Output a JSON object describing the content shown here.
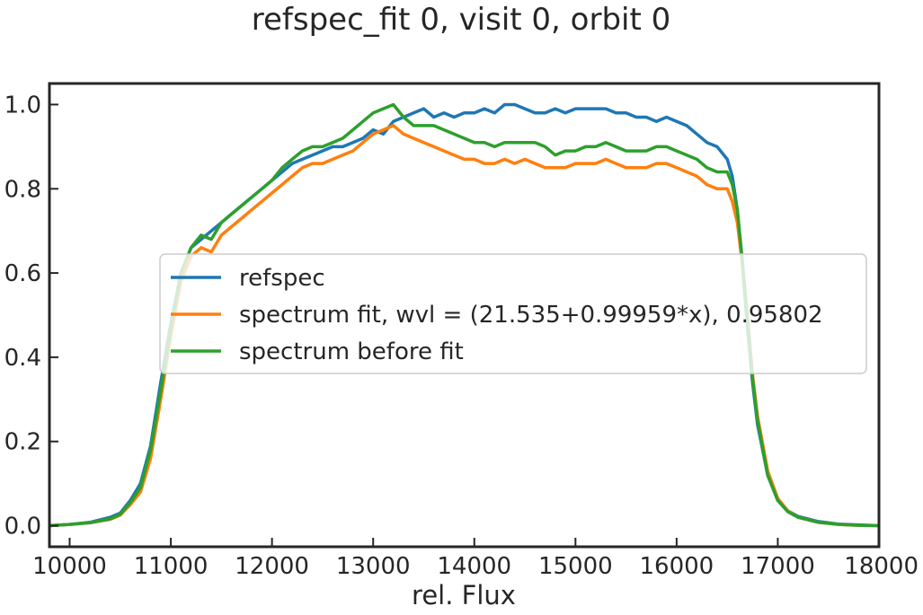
{
  "chart_data": {
    "type": "line",
    "title": "refspec_fit 0, visit 0, orbit 0",
    "xlabel": "rel. Flux",
    "ylabel": "",
    "xlim": [
      9800,
      18000
    ],
    "ylim": [
      -0.05,
      1.05
    ],
    "xticks": [
      "10000",
      "11000",
      "12000",
      "13000",
      "14000",
      "15000",
      "16000",
      "17000",
      "18000"
    ],
    "yticks": [
      "0.0",
      "0.2",
      "0.4",
      "0.6",
      "0.8",
      "1.0"
    ],
    "grid": false,
    "legend_position": "center",
    "series": [
      {
        "name": "refspec",
        "color": "#1f77b4",
        "x": [
          9800,
          10000,
          10200,
          10400,
          10500,
          10600,
          10700,
          10800,
          10900,
          11000,
          11100,
          11200,
          11300,
          11400,
          11500,
          11600,
          11700,
          11800,
          11900,
          12000,
          12100,
          12200,
          12300,
          12400,
          12500,
          12600,
          12700,
          12800,
          12900,
          13000,
          13100,
          13200,
          13300,
          13400,
          13500,
          13600,
          13700,
          13800,
          13900,
          14000,
          14100,
          14200,
          14300,
          14400,
          14500,
          14600,
          14700,
          14800,
          14900,
          15000,
          15100,
          15200,
          15300,
          15400,
          15500,
          15600,
          15700,
          15800,
          15900,
          16000,
          16100,
          16200,
          16300,
          16400,
          16500,
          16550,
          16600,
          16650,
          16700,
          16750,
          16800,
          16900,
          17000,
          17100,
          17200,
          17400,
          17600,
          17800,
          18000
        ],
        "y": [
          0.0,
          0.003,
          0.008,
          0.02,
          0.03,
          0.06,
          0.1,
          0.19,
          0.34,
          0.48,
          0.6,
          0.66,
          0.68,
          0.7,
          0.72,
          0.74,
          0.76,
          0.78,
          0.8,
          0.82,
          0.84,
          0.86,
          0.87,
          0.88,
          0.89,
          0.9,
          0.9,
          0.91,
          0.92,
          0.94,
          0.93,
          0.96,
          0.97,
          0.98,
          0.99,
          0.97,
          0.98,
          0.97,
          0.98,
          0.98,
          0.99,
          0.98,
          1.0,
          1.0,
          0.99,
          0.98,
          0.98,
          0.99,
          0.98,
          0.99,
          0.99,
          0.99,
          0.99,
          0.98,
          0.98,
          0.97,
          0.97,
          0.96,
          0.97,
          0.96,
          0.95,
          0.93,
          0.91,
          0.9,
          0.87,
          0.83,
          0.75,
          0.62,
          0.47,
          0.34,
          0.24,
          0.12,
          0.06,
          0.035,
          0.022,
          0.01,
          0.004,
          0.002,
          0.0
        ]
      },
      {
        "name": "spectrum fit, wvl = (21.535+0.99959*x), 0.95802",
        "color": "#ff7f0e",
        "x": [
          9800,
          10000,
          10200,
          10400,
          10500,
          10600,
          10700,
          10800,
          10900,
          11000,
          11100,
          11200,
          11300,
          11400,
          11500,
          11600,
          11700,
          11800,
          11900,
          12000,
          12100,
          12200,
          12300,
          12400,
          12500,
          12600,
          12700,
          12800,
          12900,
          13000,
          13100,
          13200,
          13300,
          13400,
          13500,
          13600,
          13700,
          13800,
          13900,
          14000,
          14100,
          14200,
          14300,
          14400,
          14500,
          14600,
          14700,
          14800,
          14900,
          15000,
          15100,
          15200,
          15300,
          15400,
          15500,
          15600,
          15700,
          15800,
          15900,
          16000,
          16100,
          16200,
          16300,
          16400,
          16500,
          16550,
          16600,
          16650,
          16700,
          16750,
          16800,
          16900,
          17000,
          17100,
          17200,
          17400,
          17600,
          17800,
          18000
        ],
        "y": [
          0.0,
          0.003,
          0.007,
          0.015,
          0.025,
          0.05,
          0.08,
          0.16,
          0.3,
          0.45,
          0.58,
          0.64,
          0.66,
          0.65,
          0.69,
          0.71,
          0.73,
          0.75,
          0.77,
          0.79,
          0.81,
          0.83,
          0.85,
          0.86,
          0.86,
          0.87,
          0.88,
          0.89,
          0.91,
          0.93,
          0.94,
          0.95,
          0.93,
          0.92,
          0.91,
          0.9,
          0.89,
          0.88,
          0.87,
          0.87,
          0.86,
          0.86,
          0.87,
          0.86,
          0.87,
          0.86,
          0.85,
          0.85,
          0.85,
          0.86,
          0.86,
          0.86,
          0.87,
          0.86,
          0.85,
          0.85,
          0.85,
          0.86,
          0.86,
          0.85,
          0.84,
          0.83,
          0.81,
          0.8,
          0.8,
          0.77,
          0.72,
          0.62,
          0.5,
          0.36,
          0.26,
          0.13,
          0.065,
          0.035,
          0.02,
          0.008,
          0.003,
          0.001,
          0.0
        ]
      },
      {
        "name": "spectrum before fit",
        "color": "#2ca02c",
        "x": [
          9800,
          10000,
          10200,
          10400,
          10500,
          10600,
          10700,
          10800,
          10900,
          11000,
          11100,
          11200,
          11300,
          11400,
          11500,
          11600,
          11700,
          11800,
          11900,
          12000,
          12100,
          12200,
          12300,
          12400,
          12500,
          12600,
          12700,
          12800,
          12900,
          13000,
          13100,
          13200,
          13300,
          13400,
          13500,
          13600,
          13700,
          13800,
          13900,
          14000,
          14100,
          14200,
          14300,
          14400,
          14500,
          14600,
          14700,
          14800,
          14900,
          15000,
          15100,
          15200,
          15300,
          15400,
          15500,
          15600,
          15700,
          15800,
          15900,
          16000,
          16100,
          16200,
          16300,
          16400,
          16500,
          16550,
          16600,
          16650,
          16700,
          16750,
          16800,
          16900,
          17000,
          17100,
          17200,
          17400,
          17600,
          17800,
          18000
        ],
        "y": [
          0.0,
          0.003,
          0.007,
          0.016,
          0.027,
          0.055,
          0.09,
          0.18,
          0.32,
          0.47,
          0.6,
          0.66,
          0.69,
          0.68,
          0.72,
          0.74,
          0.76,
          0.78,
          0.8,
          0.82,
          0.85,
          0.87,
          0.89,
          0.9,
          0.9,
          0.91,
          0.92,
          0.94,
          0.96,
          0.98,
          0.99,
          1.0,
          0.97,
          0.95,
          0.95,
          0.95,
          0.94,
          0.93,
          0.92,
          0.91,
          0.91,
          0.9,
          0.91,
          0.91,
          0.91,
          0.91,
          0.9,
          0.88,
          0.89,
          0.89,
          0.9,
          0.9,
          0.91,
          0.9,
          0.89,
          0.89,
          0.89,
          0.9,
          0.9,
          0.89,
          0.88,
          0.87,
          0.85,
          0.84,
          0.84,
          0.81,
          0.75,
          0.63,
          0.49,
          0.35,
          0.25,
          0.12,
          0.06,
          0.033,
          0.02,
          0.008,
          0.003,
          0.001,
          0.0
        ]
      }
    ]
  }
}
